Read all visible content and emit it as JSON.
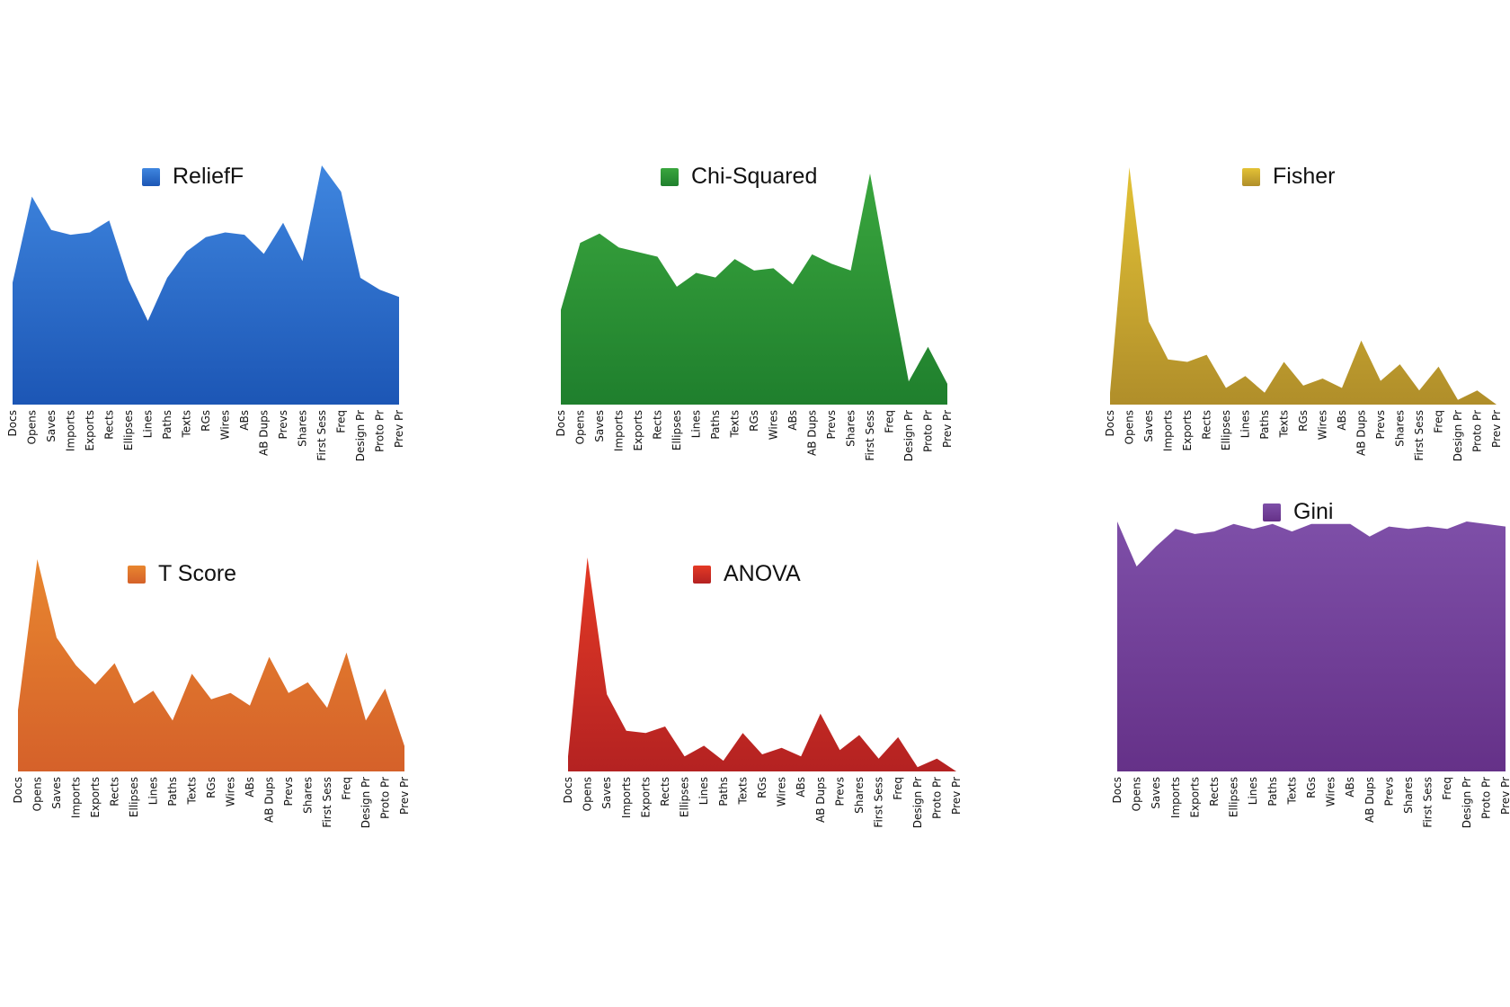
{
  "chart_data": [
    {
      "type": "area",
      "title": "",
      "legend": "ReliefF",
      "color": "#3f86df",
      "color_dark": "#1c56b5",
      "categories": [
        "Docs",
        "Opens",
        "Saves",
        "Imports",
        "Exports",
        "Rects",
        "Ellipses",
        "Lines",
        "Paths",
        "Texts",
        "RGs",
        "Wires",
        "ABs",
        "AB Dups",
        "Prevs",
        "Shares",
        "First Sess",
        "Freq",
        "Design Pr",
        "Proto Pr",
        "Prev Pr"
      ],
      "values": [
        0.51,
        0.87,
        0.73,
        0.71,
        0.72,
        0.77,
        0.52,
        0.35,
        0.53,
        0.64,
        0.7,
        0.72,
        0.71,
        0.63,
        0.76,
        0.6,
        1.0,
        0.89,
        0.53,
        0.48,
        0.45
      ],
      "ylim": [
        0,
        1
      ]
    },
    {
      "type": "area",
      "title": "",
      "legend": "Chi-Squared",
      "color": "#3aa63e",
      "color_dark": "#1f7f2d",
      "categories": [
        "Docs",
        "Opens",
        "Saves",
        "Imports",
        "Exports",
        "Rects",
        "Ellipses",
        "Lines",
        "Paths",
        "Texts",
        "RGs",
        "Wires",
        "ABs",
        "AB Dups",
        "Prevs",
        "Shares",
        "First Sess",
        "Freq",
        "Design Pr",
        "Proto Pr",
        "Prev Pr"
      ],
      "values": [
        0.41,
        0.7,
        0.74,
        0.68,
        0.66,
        0.64,
        0.51,
        0.57,
        0.55,
        0.63,
        0.58,
        0.59,
        0.52,
        0.65,
        0.61,
        0.58,
        1.0,
        0.54,
        0.1,
        0.25,
        0.09
      ],
      "ylim": [
        0,
        1
      ]
    },
    {
      "type": "area",
      "title": "",
      "legend": "Fisher",
      "color": "#e3c236",
      "color_dark": "#b08e2a",
      "categories": [
        "Docs",
        "Opens",
        "Saves",
        "Imports",
        "Exports",
        "Rects",
        "Ellipses",
        "Lines",
        "Paths",
        "Texts",
        "RGs",
        "Wires",
        "ABs",
        "AB Dups",
        "Prevs",
        "Shares",
        "First Sess",
        "Freq",
        "Design Pr",
        "Proto Pr",
        "Prev Pr"
      ],
      "values": [
        0.05,
        1.0,
        0.35,
        0.19,
        0.18,
        0.21,
        0.07,
        0.12,
        0.05,
        0.18,
        0.08,
        0.11,
        0.07,
        0.27,
        0.1,
        0.17,
        0.06,
        0.16,
        0.02,
        0.06,
        0.0
      ],
      "ylim": [
        0,
        1
      ]
    },
    {
      "type": "area",
      "title": "",
      "legend": "T Score",
      "color": "#e8862f",
      "color_dark": "#d5612a",
      "categories": [
        "Docs",
        "Opens",
        "Saves",
        "Imports",
        "Exports",
        "Rects",
        "Ellipses",
        "Lines",
        "Paths",
        "Texts",
        "RGs",
        "Wires",
        "ABs",
        "AB Dups",
        "Prevs",
        "Shares",
        "First Sess",
        "Freq",
        "Design Pr",
        "Proto Pr",
        "Prev Pr"
      ],
      "values": [
        0.29,
        1.0,
        0.63,
        0.5,
        0.41,
        0.51,
        0.32,
        0.38,
        0.24,
        0.46,
        0.34,
        0.37,
        0.31,
        0.54,
        0.37,
        0.42,
        0.3,
        0.56,
        0.24,
        0.39,
        0.12
      ],
      "ylim": [
        0,
        1
      ]
    },
    {
      "type": "area",
      "title": "",
      "legend": "ANOVA",
      "color": "#e43a25",
      "color_dark": "#b42222",
      "categories": [
        "Docs",
        "Opens",
        "Saves",
        "Imports",
        "Exports",
        "Rects",
        "Ellipses",
        "Lines",
        "Paths",
        "Texts",
        "RGs",
        "Wires",
        "ABs",
        "AB Dups",
        "Prevs",
        "Shares",
        "First Sess",
        "Freq",
        "Design Pr",
        "Proto Pr",
        "Prev Pr"
      ],
      "values": [
        0.07,
        1.0,
        0.36,
        0.19,
        0.18,
        0.21,
        0.07,
        0.12,
        0.05,
        0.18,
        0.08,
        0.11,
        0.07,
        0.27,
        0.1,
        0.17,
        0.06,
        0.16,
        0.02,
        0.06,
        0.0
      ],
      "ylim": [
        0,
        1
      ]
    },
    {
      "type": "area",
      "title": "",
      "legend": "Gini",
      "color": "#7e4fa8",
      "color_dark": "#653188",
      "categories": [
        "Docs",
        "Opens",
        "Saves",
        "Imports",
        "Exports",
        "Rects",
        "Ellipses",
        "Lines",
        "Paths",
        "Texts",
        "RGs",
        "Wires",
        "ABs",
        "AB Dups",
        "Prevs",
        "Shares",
        "First Sess",
        "Freq",
        "Design Pr",
        "Proto Pr",
        "Prev Pr"
      ],
      "values": [
        1.0,
        0.82,
        0.9,
        0.97,
        0.95,
        0.96,
        0.99,
        0.97,
        0.99,
        0.96,
        0.99,
        0.99,
        0.99,
        0.94,
        0.98,
        0.97,
        0.98,
        0.97,
        1.0,
        0.99,
        0.98
      ],
      "ylim": [
        0,
        1
      ]
    }
  ]
}
